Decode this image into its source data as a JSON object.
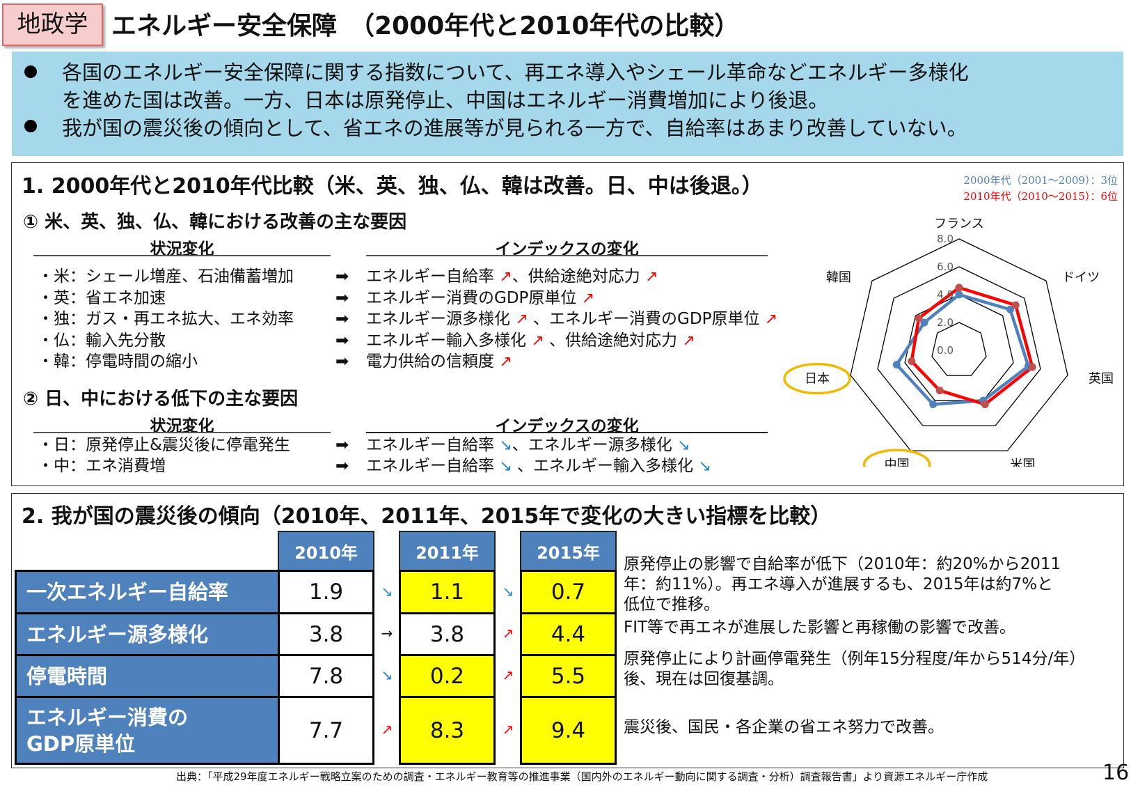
{
  "header": {
    "tag": "地政学",
    "title": "エネルギー安全保障　（2000年代と2010年代の比較）"
  },
  "summary": {
    "bullets": [
      [
        "各国のエネルギー安全保障に関する指数について、再エネ導入やシェール革命などエネルギー多様化",
        "を進めた国は改善。一方、日本は原発停止、中国はエネルギー消費増加により後退。"
      ],
      [
        "我が国の震災後の傾向として、省エネの進展等が見られる一方で、自給率はあまり改善していない。"
      ]
    ]
  },
  "section1": {
    "title": "1.  2000年代と2010年代比較（米、英、独、仏、韓は改善。日、中は後退。）",
    "sub1": {
      "title": "① 米、英、独、仏、韓における改善の主な要因",
      "col_left": "状況変化",
      "col_right": "インデックスの変化",
      "rows": [
        {
          "left": "・米：シェール増産、石油備蓄増加",
          "right": [
            {
              "t": "エネルギー自給率 "
            },
            {
              "a": "up"
            },
            {
              "t": "、供給途絶対応力 "
            },
            {
              "a": "up"
            }
          ]
        },
        {
          "left": "・英：省エネ加速",
          "right": [
            {
              "t": "エネルギー消費のGDP原単位 "
            },
            {
              "a": "up"
            }
          ]
        },
        {
          "left": "・独：ガス・再エネ拡大、エネ効率",
          "right": [
            {
              "t": "エネルギー源多様化 "
            },
            {
              "a": "up"
            },
            {
              "t": " 、エネルギー消費のGDP原単位 "
            },
            {
              "a": "up"
            }
          ]
        },
        {
          "left": "・仏：輸入先分散",
          "right": [
            {
              "t": "エネルギー輸入多様化 "
            },
            {
              "a": "up"
            },
            {
              "t": " 、供給途絶対応力 "
            },
            {
              "a": "up"
            }
          ]
        },
        {
          "left": "・韓：停電時間の縮小",
          "right": [
            {
              "t": "電力供給の信頼度 "
            },
            {
              "a": "up"
            }
          ]
        }
      ]
    },
    "sub2": {
      "title": "② 日、中における低下の主な要因",
      "col_left": "状況変化",
      "col_right": "インデックスの変化",
      "rows": [
        {
          "left": "・日：原発停止&震災後に停電発生",
          "right": [
            {
              "t": "エネルギー自給率 "
            },
            {
              "a": "down"
            },
            {
              "t": "、エネルギー源多様化 "
            },
            {
              "a": "down"
            }
          ]
        },
        {
          "left": "・中：エネ消費増",
          "right": [
            {
              "t": "エネルギー自給率 "
            },
            {
              "a": "down"
            },
            {
              "t": " 、エネルギー輸入多様化 "
            },
            {
              "a": "down"
            }
          ]
        }
      ]
    },
    "arrow_symbols": {
      "right": "➡",
      "up": "↗",
      "down": "↘",
      "flat": "→"
    }
  },
  "chart_data": {
    "type": "radar",
    "axes": [
      "フランス",
      "ドイツ",
      "英国",
      "米国",
      "中国",
      "日本",
      "韓国"
    ],
    "highlighted_axes": [
      "日本",
      "中国"
    ],
    "range": [
      0,
      8
    ],
    "tick_labels": [
      "0.0",
      "2.0",
      "4.0",
      "6.0",
      "8.0"
    ],
    "ticks": [
      0,
      2,
      4,
      6,
      8
    ],
    "legend": [
      "2000年代（2001～2009）：3位",
      "2010年代（2010～2015）：6位"
    ],
    "legend_placement": "top-right",
    "series": [
      {
        "name": "2000年代（2001～2009）",
        "color": "#4f81bd",
        "values": [
          4.0,
          4.7,
          5.1,
          4.0,
          4.3,
          4.6,
          3.2
        ]
      },
      {
        "name": "2010年代（2010～2015）",
        "color": "#ff0000",
        "marker_color": "#c0504d",
        "values": [
          4.5,
          5.2,
          5.4,
          4.3,
          3.2,
          3.5,
          3.7
        ]
      }
    ],
    "highlight_color": "#f5b800"
  },
  "section2": {
    "title": "2.  我が国の震災後の傾向（2010年、2011年、2015年で変化の大きい指標を比較）",
    "years": [
      "2010年",
      "2011年",
      "2015年"
    ],
    "rows": [
      {
        "label": "一次エネルギー自給率",
        "values": [
          "1.9",
          "1.1",
          "0.7"
        ],
        "highlight": [
          false,
          true,
          true
        ],
        "trend": [
          "down",
          "down"
        ]
      },
      {
        "label": "エネルギー源多様化",
        "values": [
          "3.8",
          "3.8",
          "4.4"
        ],
        "highlight": [
          false,
          false,
          true
        ],
        "trend": [
          "flat",
          "up"
        ]
      },
      {
        "label": "停電時間",
        "values": [
          "7.8",
          "0.2",
          "5.5"
        ],
        "highlight": [
          false,
          true,
          true
        ],
        "trend": [
          "down",
          "up"
        ]
      },
      {
        "label": "エネルギー消費の\nGDP原単位",
        "values": [
          "7.7",
          "8.3",
          "9.4"
        ],
        "highlight": [
          false,
          true,
          true
        ],
        "trend": [
          "up",
          "up"
        ]
      }
    ],
    "notes": [
      [
        "原発停止の影響で自給率が低下（2010年：約20%から2011",
        "年：約11%）。再エネ導入が進展するも、2015年は約7%と",
        "低位で推移。"
      ],
      [
        "FIT等で再エネが進展した影響と再稼働の影響で改善。"
      ],
      [
        "原発停止により計画停電発生（例年15分程度/年から514分/年）",
        "後、現在は回復基調。"
      ],
      [
        "震災後、国民・各企業の省エネ努力で改善。"
      ]
    ],
    "colors": {
      "label_bg": "#4f81bd",
      "highlight": "#ffff00"
    }
  },
  "footer": {
    "source": "出典：「平成29年度エネルギー戦略立案のための調査・エネルギー教育等の推進事業（国内外のエネルギー動向に関する調査・分析）調査報告書」より資源エネルギー庁作成",
    "page": "16"
  }
}
